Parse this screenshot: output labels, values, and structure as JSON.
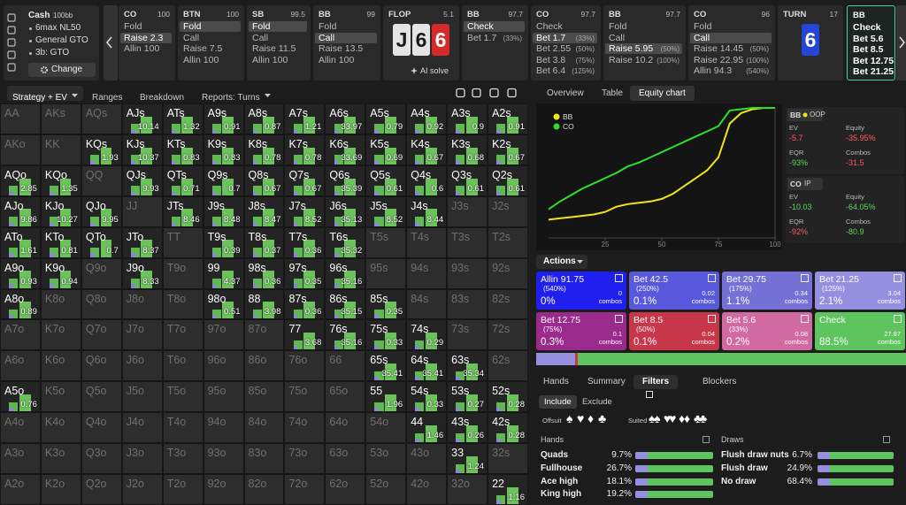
{
  "game": {
    "title": "Cash",
    "stack": "100bb",
    "items": [
      "6max NL50",
      "General GTO",
      "3b: GTO"
    ],
    "button": "Change"
  },
  "timeline": [
    {
      "pos": "CO",
      "stack": "100",
      "actions": [
        {
          "label": "Fold"
        },
        {
          "label": "Raise 2.3"
        },
        {
          "label": "Allin 100"
        }
      ],
      "selected": 1
    },
    {
      "pos": "BTN",
      "stack": "100",
      "actions": [
        {
          "label": "Fold"
        },
        {
          "label": "Call"
        },
        {
          "label": "Raise 7.5"
        },
        {
          "label": "Allin 100"
        }
      ],
      "selected": 0
    },
    {
      "pos": "SB",
      "stack": "99.5",
      "actions": [
        {
          "label": "Fold"
        },
        {
          "label": "Call"
        },
        {
          "label": "Raise 11.5"
        },
        {
          "label": "Allin 100"
        }
      ],
      "selected": 0
    },
    {
      "pos": "BB",
      "stack": "99",
      "actions": [
        {
          "label": "Fold"
        },
        {
          "label": "Call"
        },
        {
          "label": "Raise 13.5"
        },
        {
          "label": "Allin 100"
        }
      ],
      "selected": 1
    },
    {
      "street": "FLOP",
      "pot": "5.1",
      "cards": [
        {
          "rank": "J",
          "color": "#e4e4e4",
          "text_color": "#1a1a1a"
        },
        {
          "rank": "6",
          "color": "#e4e4e4",
          "text_color": "#1a1a1a"
        },
        {
          "rank": "6",
          "color": "#d42a2a",
          "text_color": "#ffffff"
        }
      ],
      "link": "AI solve"
    },
    {
      "pos": "BB",
      "stack": "97.7",
      "actions": [
        {
          "label": "Check"
        },
        {
          "label": "Bet 1.7",
          "size": "(33%)"
        }
      ],
      "selected": 0
    },
    {
      "pos": "CO",
      "stack": "97.7",
      "actions": [
        {
          "label": "Check"
        },
        {
          "label": "Bet 1.7",
          "size": "(33%)"
        },
        {
          "label": "Bet 2.55",
          "size": "(50%)"
        },
        {
          "label": "Bet 3.8",
          "size": "(75%)"
        },
        {
          "label": "Bet 6.4",
          "size": "(125%)"
        }
      ],
      "selected": 1
    },
    {
      "pos": "BB",
      "stack": "97.7",
      "actions": [
        {
          "label": "Fold"
        },
        {
          "label": "Call"
        },
        {
          "label": "Raise 5.95",
          "size": "(50%)"
        },
        {
          "label": "Raise 10.2",
          "size": "(100%)"
        }
      ],
      "selected": 2
    },
    {
      "pos": "CO",
      "stack": "96",
      "actions": [
        {
          "label": "Fold"
        },
        {
          "label": "Call"
        },
        {
          "label": "Raise 14.45",
          "size": "(50%)"
        },
        {
          "label": "Raise 22.95",
          "size": "(100%)"
        },
        {
          "label": "Allin 94.3",
          "size": "(540%)"
        }
      ],
      "selected": 1
    },
    {
      "street": "TURN",
      "pot": "17",
      "cards": [
        {
          "rank": "6",
          "color": "#2346d6",
          "text_color": "#ffffff"
        }
      ]
    },
    {
      "pos": "BB",
      "actions": [
        {
          "label": "Check"
        },
        {
          "label": "Bet 5.6"
        },
        {
          "label": "Bet 8.5"
        },
        {
          "label": "Bet 12.75"
        },
        {
          "label": "Bet 21.25"
        }
      ],
      "current": true
    }
  ],
  "left_tabs": [
    {
      "label": "Strategy + EV",
      "menu": true
    },
    {
      "label": "Ranges"
    },
    {
      "label": "Breakdown"
    },
    {
      "label": "Reports: Turns",
      "menu": true
    }
  ],
  "active_left_tab": 0,
  "right_tabs": [
    "Overview",
    "Table",
    "Equity chart"
  ],
  "active_right_tab": 2,
  "range_grid": {
    "rows": [
      [
        {
          "hand": "AA"
        },
        {
          "hand": "AKs"
        },
        {
          "hand": "AQs"
        },
        {
          "hand": "AJs",
          "ev": "10.14"
        },
        {
          "hand": "ATs",
          "ev": "1.32"
        },
        {
          "hand": "A9s",
          "ev": "0.91"
        },
        {
          "hand": "A8s",
          "ev": "0.87"
        },
        {
          "hand": "A7s",
          "ev": "1.21"
        },
        {
          "hand": "A6s",
          "ev": "33.97"
        },
        {
          "hand": "A5s",
          "ev": "0.79"
        },
        {
          "hand": "A4s",
          "ev": "0.92"
        },
        {
          "hand": "A3s",
          "ev": "0.9"
        },
        {
          "hand": "A2s",
          "ev": "0.91"
        }
      ],
      [
        {
          "hand": "AKo"
        },
        {
          "hand": "KK"
        },
        {
          "hand": "KQs",
          "ev": "1.93"
        },
        {
          "hand": "KJs",
          "ev": "10.37"
        },
        {
          "hand": "KTs",
          "ev": "0.83"
        },
        {
          "hand": "K9s",
          "ev": "0.83"
        },
        {
          "hand": "K8s",
          "ev": "0.78"
        },
        {
          "hand": "K7s",
          "ev": "0.78"
        },
        {
          "hand": "K6s",
          "ev": "33.69"
        },
        {
          "hand": "K5s",
          "ev": "0.69"
        },
        {
          "hand": "K4s",
          "ev": "0.67"
        },
        {
          "hand": "K3s",
          "ev": "0.68"
        },
        {
          "hand": "K2s",
          "ev": "0.67"
        }
      ],
      [
        {
          "hand": "AQo",
          "ev": "2.85"
        },
        {
          "hand": "KQo",
          "ev": "1.35"
        },
        {
          "hand": "QQ"
        },
        {
          "hand": "QJs",
          "ev": "9.93"
        },
        {
          "hand": "QTs",
          "ev": "0.71"
        },
        {
          "hand": "Q9s",
          "ev": "0.7"
        },
        {
          "hand": "Q8s",
          "ev": "0.67"
        },
        {
          "hand": "Q7s",
          "ev": "0.67"
        },
        {
          "hand": "Q6s",
          "ev": "35.39"
        },
        {
          "hand": "Q5s",
          "ev": "0.61"
        },
        {
          "hand": "Q4s",
          "ev": "0.6"
        },
        {
          "hand": "Q3s",
          "ev": "0.61"
        },
        {
          "hand": "Q2s",
          "ev": "0.61"
        }
      ],
      [
        {
          "hand": "AJo",
          "ev": "9.86"
        },
        {
          "hand": "KJo",
          "ev": "10.27"
        },
        {
          "hand": "QJo",
          "ev": "9.95"
        },
        {
          "hand": "JJ"
        },
        {
          "hand": "JTs",
          "ev": "8.46"
        },
        {
          "hand": "J9s",
          "ev": "8.48"
        },
        {
          "hand": "J8s",
          "ev": "8.47"
        },
        {
          "hand": "J7s",
          "ev": "8.52"
        },
        {
          "hand": "J6s",
          "ev": "35.13"
        },
        {
          "hand": "J5s",
          "ev": "8.52"
        },
        {
          "hand": "J4s",
          "ev": "8.44"
        },
        {
          "hand": "J3s"
        },
        {
          "hand": "J2s"
        }
      ],
      [
        {
          "hand": "ATo",
          "ev": "1.61"
        },
        {
          "hand": "KTo",
          "ev": "0.81"
        },
        {
          "hand": "QTo",
          "ev": "0.7"
        },
        {
          "hand": "JTo",
          "ev": "8.37"
        },
        {
          "hand": "TT"
        },
        {
          "hand": "T9s",
          "ev": "0.39"
        },
        {
          "hand": "T8s",
          "ev": "0.37"
        },
        {
          "hand": "T7s",
          "ev": "0.36"
        },
        {
          "hand": "T6s",
          "ev": "35.32"
        },
        {
          "hand": "T5s"
        },
        {
          "hand": "T4s"
        },
        {
          "hand": "T3s"
        },
        {
          "hand": "T2s"
        }
      ],
      [
        {
          "hand": "A9o",
          "ev": "0.93"
        },
        {
          "hand": "K9o",
          "ev": "0.94"
        },
        {
          "hand": "Q9o"
        },
        {
          "hand": "J9o",
          "ev": "8.33"
        },
        {
          "hand": "T9o"
        },
        {
          "hand": "99",
          "ev": "4.37"
        },
        {
          "hand": "98s",
          "ev": "0.36"
        },
        {
          "hand": "97s",
          "ev": "0.35"
        },
        {
          "hand": "96s",
          "ev": "35.16"
        },
        {
          "hand": "95s"
        },
        {
          "hand": "94s"
        },
        {
          "hand": "93s"
        },
        {
          "hand": "92s"
        }
      ],
      [
        {
          "hand": "A8o",
          "ev": "0.89"
        },
        {
          "hand": "K8o"
        },
        {
          "hand": "Q8o"
        },
        {
          "hand": "J8o"
        },
        {
          "hand": "T8o"
        },
        {
          "hand": "98o",
          "ev": "0.51"
        },
        {
          "hand": "88",
          "ev": "3.98"
        },
        {
          "hand": "87s",
          "ev": "0.36"
        },
        {
          "hand": "86s",
          "ev": "35.15"
        },
        {
          "hand": "85s",
          "ev": "0.35"
        },
        {
          "hand": "84s"
        },
        {
          "hand": "83s"
        },
        {
          "hand": "82s"
        }
      ],
      [
        {
          "hand": "A7o"
        },
        {
          "hand": "K7o"
        },
        {
          "hand": "Q7o"
        },
        {
          "hand": "J7o"
        },
        {
          "hand": "T7o"
        },
        {
          "hand": "97o"
        },
        {
          "hand": "87o"
        },
        {
          "hand": "77",
          "ev": "3.68"
        },
        {
          "hand": "76s",
          "ev": "35.16"
        },
        {
          "hand": "75s",
          "ev": "0.33"
        },
        {
          "hand": "74s",
          "ev": "0.29"
        },
        {
          "hand": "73s"
        },
        {
          "hand": "72s"
        }
      ],
      [
        {
          "hand": "A6o"
        },
        {
          "hand": "K6o"
        },
        {
          "hand": "Q6o"
        },
        {
          "hand": "J6o"
        },
        {
          "hand": "T6o"
        },
        {
          "hand": "96o"
        },
        {
          "hand": "86o"
        },
        {
          "hand": "76o"
        },
        {
          "hand": "66"
        },
        {
          "hand": "65s",
          "ev": "35.41"
        },
        {
          "hand": "64s",
          "ev": "35.41"
        },
        {
          "hand": "63s",
          "ev": "35.34"
        },
        {
          "hand": "62s"
        }
      ],
      [
        {
          "hand": "A5o",
          "ev": "0.76"
        },
        {
          "hand": "K5o"
        },
        {
          "hand": "Q5o"
        },
        {
          "hand": "J5o"
        },
        {
          "hand": "T5o"
        },
        {
          "hand": "95o"
        },
        {
          "hand": "85o"
        },
        {
          "hand": "75o"
        },
        {
          "hand": "65o"
        },
        {
          "hand": "55",
          "ev": "1.96"
        },
        {
          "hand": "54s",
          "ev": "0.33"
        },
        {
          "hand": "53s",
          "ev": "0.27"
        },
        {
          "hand": "52s",
          "ev": "0.28"
        }
      ],
      [
        {
          "hand": "A4o"
        },
        {
          "hand": "K4o"
        },
        {
          "hand": "Q4o"
        },
        {
          "hand": "J4o"
        },
        {
          "hand": "T4o"
        },
        {
          "hand": "94o"
        },
        {
          "hand": "84o"
        },
        {
          "hand": "74o"
        },
        {
          "hand": "64o"
        },
        {
          "hand": "54o"
        },
        {
          "hand": "44",
          "ev": "1.46"
        },
        {
          "hand": "43s",
          "ev": "0.26"
        },
        {
          "hand": "42s",
          "ev": "0.28"
        }
      ],
      [
        {
          "hand": "A3o"
        },
        {
          "hand": "K3o"
        },
        {
          "hand": "Q3o"
        },
        {
          "hand": "J3o"
        },
        {
          "hand": "T3o"
        },
        {
          "hand": "93o"
        },
        {
          "hand": "83o"
        },
        {
          "hand": "73o"
        },
        {
          "hand": "63o"
        },
        {
          "hand": "53o"
        },
        {
          "hand": "43o"
        },
        {
          "hand": "33",
          "ev": "1.24"
        },
        {
          "hand": "32s"
        }
      ],
      [
        {
          "hand": "A2o"
        },
        {
          "hand": "K2o"
        },
        {
          "hand": "Q2o"
        },
        {
          "hand": "J2o"
        },
        {
          "hand": "T2o"
        },
        {
          "hand": "92o"
        },
        {
          "hand": "82o"
        },
        {
          "hand": "72o"
        },
        {
          "hand": "62o"
        },
        {
          "hand": "52o"
        },
        {
          "hand": "42o"
        },
        {
          "hand": "32o"
        },
        {
          "hand": "22",
          "ev": "1.16"
        }
      ]
    ]
  },
  "chart_data": {
    "type": "line",
    "x": [
      0,
      5,
      10,
      15,
      20,
      25,
      30,
      35,
      40,
      45,
      50,
      55,
      60,
      65,
      70,
      75,
      80,
      85,
      90,
      95,
      100
    ],
    "series": [
      {
        "name": "BB",
        "color": "#f2e614",
        "values": [
          14,
          15,
          16,
          17,
          18,
          20,
          24,
          26,
          27,
          28,
          30,
          34,
          40,
          46,
          52,
          62,
          88,
          96,
          99,
          100,
          100
        ]
      },
      {
        "name": "CO",
        "color": "#2ee02e",
        "values": [
          22,
          28,
          33,
          38,
          42,
          46,
          50,
          55,
          58,
          62,
          66,
          70,
          74,
          78,
          82,
          86,
          98,
          99,
          100,
          100,
          100
        ]
      }
    ],
    "xlim": [
      0,
      100
    ],
    "xticks": [
      25,
      50,
      75,
      100
    ],
    "ylim": [
      0,
      100
    ],
    "grid": false,
    "legend": "top-left"
  },
  "players": [
    {
      "name": "BB",
      "side": "OOP",
      "dot": "#f2e614",
      "stats": [
        {
          "label": "EV",
          "value": "-5.7",
          "color": "#ff5b5b"
        },
        {
          "label": "Equity",
          "value": "-35.95%",
          "color": "#ff5b5b"
        },
        {
          "label": "EQR",
          "value": "-93%",
          "color": "#5cd65c"
        },
        {
          "label": "Combos",
          "value": "-31.5",
          "color": "#ff5b5b"
        }
      ]
    },
    {
      "name": "CO",
      "side": "IP",
      "stats": [
        {
          "label": "EV",
          "value": "-10.03",
          "color": "#5cd65c"
        },
        {
          "label": "Equity",
          "value": "-64.05%",
          "color": "#5cd65c"
        },
        {
          "label": "EQR",
          "value": "-92%",
          "color": "#ff5b5b"
        },
        {
          "label": "Combos",
          "value": "-80.9",
          "color": "#5cd65c"
        }
      ]
    }
  ],
  "actions": {
    "title": "Actions",
    "combos_label": "combos",
    "items": [
      {
        "label": "Allin 91.75",
        "size": "(540%)",
        "freq": "0%",
        "combos": "0",
        "color": "#1f1ff0"
      },
      {
        "label": "Bet 42.5",
        "size": "(250%)",
        "freq": "0.1%",
        "combos": "0.02",
        "color": "#5858dc"
      },
      {
        "label": "Bet 29.75",
        "size": "(175%)",
        "freq": "1.1%",
        "combos": "0.34",
        "color": "#7570d6"
      },
      {
        "label": "Bet 21.25",
        "size": "(125%)",
        "freq": "2.1%",
        "combos": "3.04",
        "color": "#958fdf"
      },
      {
        "label": "Bet 12.75",
        "size": "(75%)",
        "freq": "0.3%",
        "combos": "0.1",
        "color": "#9a2a8c"
      },
      {
        "label": "Bet 8.5",
        "size": "(50%)",
        "freq": "0.1%",
        "combos": "0.04",
        "color": "#c8364a"
      },
      {
        "label": "Bet 5.6",
        "size": "(33%)",
        "freq": "0.2%",
        "combos": "0.08",
        "color": "#d26aa2"
      },
      {
        "label": "Check",
        "freq": "88.5%",
        "combos": "27.87",
        "color": "#5ec45e"
      }
    ]
  },
  "filters": {
    "tabs": [
      "Hands",
      "Summary",
      "Filters",
      "Blockers"
    ],
    "active_tab": 2,
    "modes": [
      "Include",
      "Exclude"
    ],
    "active_mode": 0,
    "offsuit": "Offsuit",
    "suited": "Suited",
    "suits": [
      "♠",
      "♥",
      "♦",
      "♣"
    ],
    "hands_title": "Hands",
    "hands": [
      {
        "label": "Quads",
        "pct": "9.7%"
      },
      {
        "label": "Fullhouse",
        "pct": "26.7%"
      },
      {
        "label": "Ace high",
        "pct": "18.1%"
      },
      {
        "label": "King high",
        "pct": "19.2%"
      }
    ],
    "draws_title": "Draws",
    "draws": [
      {
        "label": "Flush draw nuts",
        "pct": "6.7%"
      },
      {
        "label": "Flush draw",
        "pct": "24.9%"
      },
      {
        "label": "No draw",
        "pct": "68.4%"
      }
    ]
  }
}
